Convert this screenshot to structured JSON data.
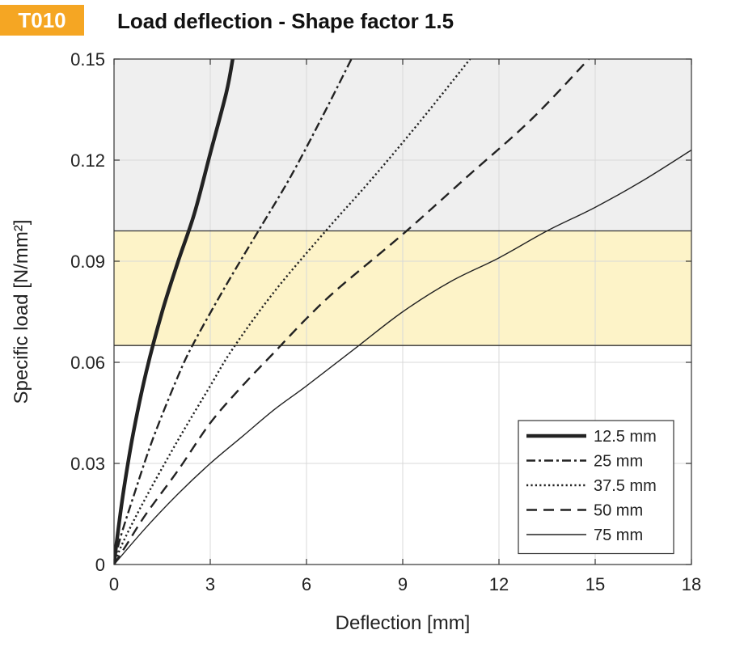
{
  "header": {
    "badge": "T010",
    "title": "Load deflection - Shape factor 1.5"
  },
  "colors": {
    "badge": "#f5a623",
    "upper_band": "#efefef",
    "working_band": "#fdf3c8",
    "band_edge": "#333333",
    "series": "#222222",
    "grid": "#d8d8d8"
  },
  "chart_data": {
    "type": "line",
    "xlabel": "Deflection  [mm]",
    "ylabel": "Specific load [N/mm²]",
    "xlim": [
      0,
      18
    ],
    "ylim": [
      0,
      0.15
    ],
    "xticks": [
      0,
      3,
      6,
      9,
      12,
      15,
      18
    ],
    "yticks": [
      0,
      0.03,
      0.06,
      0.09,
      0.12,
      0.15
    ],
    "ytick_labels": [
      "0",
      "0.03",
      "0.06",
      "0.09",
      "0.12",
      "0.15"
    ],
    "grid": true,
    "legend_position": "bottom-right",
    "bands": [
      {
        "name": "upper",
        "y0": 0.099,
        "y1": 0.15,
        "color": "#efefef"
      },
      {
        "name": "working",
        "y0": 0.065,
        "y1": 0.099,
        "color": "#fdf3c8"
      }
    ],
    "series": [
      {
        "name": "12.5 mm",
        "style": "thick-solid",
        "x": [
          0,
          0.1,
          0.3,
          0.6,
          1.0,
          1.5,
          2.0,
          2.5,
          3.0,
          3.5,
          3.7
        ],
        "y": [
          0,
          0.008,
          0.022,
          0.039,
          0.057,
          0.075,
          0.09,
          0.104,
          0.122,
          0.14,
          0.15
        ]
      },
      {
        "name": "25 mm",
        "style": "dash-dot",
        "x": [
          0,
          0.2,
          0.6,
          1.2,
          2.0,
          2.5,
          3.5,
          4.5,
          5.5,
          6.5,
          7.4
        ],
        "y": [
          0,
          0.008,
          0.02,
          0.037,
          0.056,
          0.066,
          0.083,
          0.099,
          0.115,
          0.133,
          0.15
        ]
      },
      {
        "name": "37.5 mm",
        "style": "dotted",
        "x": [
          0,
          0.3,
          1.0,
          2.0,
          3.0,
          3.7,
          5.0,
          6.6,
          8.0,
          9.5,
          11.1
        ],
        "y": [
          0,
          0.007,
          0.02,
          0.037,
          0.053,
          0.064,
          0.081,
          0.099,
          0.114,
          0.131,
          0.15
        ]
      },
      {
        "name": "50 mm",
        "style": "dashed",
        "x": [
          0,
          0.4,
          1.0,
          2.0,
          3.0,
          4.0,
          5.0,
          6.0,
          7.0,
          9.0,
          11.0,
          13.0,
          14.8
        ],
        "y": [
          0,
          0.006,
          0.015,
          0.028,
          0.042,
          0.053,
          0.063,
          0.073,
          0.082,
          0.098,
          0.115,
          0.132,
          0.15
        ]
      },
      {
        "name": "75 mm",
        "style": "thin-solid",
        "x": [
          0,
          1.0,
          2.0,
          3.0,
          4.0,
          5.0,
          6.0,
          7.5,
          9.0,
          10.5,
          12.0,
          13.5,
          15.0,
          16.5,
          18.0
        ],
        "y": [
          0,
          0.011,
          0.021,
          0.03,
          0.038,
          0.046,
          0.053,
          0.064,
          0.075,
          0.084,
          0.091,
          0.099,
          0.106,
          0.114,
          0.123
        ]
      }
    ]
  }
}
